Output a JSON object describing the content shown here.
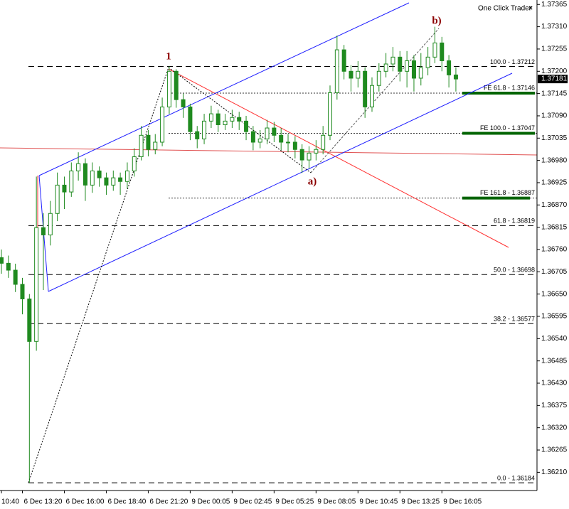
{
  "chart_data": {
    "type": "candlestick",
    "panel_title": "One Click Trader",
    "panel_close": "×",
    "color": "#1f8a1f",
    "categories": [
      "10:40",
      null,
      null,
      "6 Dec 13:20",
      null,
      null,
      null,
      null,
      null,
      "6 Dec 16:00",
      null,
      null,
      null,
      null,
      null,
      "6 Dec 18:40",
      null,
      null,
      null,
      null,
      null,
      "6 Dec 21:20",
      null,
      null,
      null,
      null,
      null,
      "9 Dec 00:05",
      null,
      null,
      null,
      null,
      null,
      "9 Dec 02:45",
      null,
      null,
      null,
      null,
      null,
      "9 Dec 05:25",
      null,
      null,
      null,
      null,
      null,
      "9 Dec 08:05",
      null,
      null,
      null,
      null,
      null,
      "9 Dec 10:45",
      null,
      null,
      null,
      null,
      null,
      "9 Dec 13:25",
      null,
      null,
      null,
      null,
      null,
      "9 Dec 16:05",
      null,
      null
    ],
    "open": [
      1.3674,
      1.36726,
      1.36709,
      1.36674,
      1.36638,
      1.36533,
      1.36814,
      1.36796,
      1.36849,
      1.36919,
      1.36902,
      1.36954,
      1.36972,
      1.36919,
      1.36954,
      1.36937,
      1.36919,
      1.36937,
      1.36928,
      1.36954,
      1.36989,
      1.37042,
      1.37007,
      1.37025,
      1.37112,
      1.372,
      1.3713,
      1.37112,
      1.37051,
      1.37033,
      1.37077,
      1.37095,
      1.37068,
      1.37077,
      1.37086,
      1.37077,
      1.37051,
      1.37025,
      1.37033,
      1.3706,
      1.37042,
      1.37025,
      1.37025,
      1.37007,
      1.36981,
      1.36998,
      1.37007,
      1.37042,
      1.37147,
      1.37253,
      1.372,
      1.37183,
      1.372,
      1.37112,
      1.37165,
      1.372,
      1.37218,
      1.37235,
      1.372,
      1.37226,
      1.37183,
      1.37209,
      1.37235,
      1.3727,
      1.37226,
      1.37191
    ],
    "high": [
      1.3676,
      1.36745,
      1.36725,
      1.3669,
      1.3665,
      1.3694,
      1.3685,
      1.3688,
      1.3695,
      1.3694,
      1.36975,
      1.37,
      1.36985,
      1.36975,
      1.36965,
      1.3695,
      1.36955,
      1.3695,
      1.36975,
      1.3701,
      1.37065,
      1.37055,
      1.37045,
      1.37135,
      1.37212,
      1.37205,
      1.37145,
      1.3712,
      1.37065,
      1.37095,
      1.37115,
      1.37105,
      1.37095,
      1.37105,
      1.371,
      1.3709,
      1.37065,
      1.37055,
      1.3708,
      1.37075,
      1.3706,
      1.37045,
      1.3704,
      1.3702,
      1.37015,
      1.3703,
      1.37065,
      1.37165,
      1.37288,
      1.37265,
      1.37215,
      1.37225,
      1.3721,
      1.37185,
      1.3722,
      1.37245,
      1.3726,
      1.3725,
      1.3725,
      1.3724,
      1.37245,
      1.3726,
      1.3731,
      1.37285,
      1.3724,
      1.3721
    ],
    "low": [
      1.367,
      1.3669,
      1.36655,
      1.366,
      1.36184,
      1.3651,
      1.3666,
      1.3677,
      1.3683,
      1.3686,
      1.3689,
      1.3693,
      1.3688,
      1.369,
      1.36915,
      1.36895,
      1.36905,
      1.36895,
      1.3691,
      1.3694,
      1.3698,
      1.3699,
      1.36995,
      1.37015,
      1.37095,
      1.3711,
      1.37085,
      1.3703,
      1.3701,
      1.3702,
      1.3706,
      1.3705,
      1.37055,
      1.3706,
      1.37055,
      1.3703,
      1.37005,
      1.3701,
      1.3702,
      1.37025,
      1.37005,
      1.37,
      1.36985,
      1.36949,
      1.3696,
      1.3698,
      1.36995,
      1.3703,
      1.3713,
      1.3718,
      1.3715,
      1.3716,
      1.37085,
      1.371,
      1.3715,
      1.37185,
      1.372,
      1.37175,
      1.3716,
      1.3715,
      1.37165,
      1.3719,
      1.3722,
      1.372,
      1.3716,
      1.3715
    ],
    "close": [
      1.36726,
      1.36709,
      1.36674,
      1.36638,
      1.36533,
      1.36814,
      1.36796,
      1.36849,
      1.36919,
      1.36902,
      1.36954,
      1.36972,
      1.36919,
      1.36954,
      1.36937,
      1.36919,
      1.36937,
      1.36928,
      1.36954,
      1.36989,
      1.37042,
      1.37007,
      1.37025,
      1.37112,
      1.372,
      1.3713,
      1.37112,
      1.37051,
      1.37033,
      1.37077,
      1.37095,
      1.37068,
      1.37077,
      1.37086,
      1.37077,
      1.37051,
      1.37025,
      1.37033,
      1.3706,
      1.37042,
      1.37025,
      1.37025,
      1.37007,
      1.36981,
      1.36998,
      1.37007,
      1.37042,
      1.37147,
      1.37253,
      1.372,
      1.37183,
      1.372,
      1.37112,
      1.37165,
      1.372,
      1.37218,
      1.37235,
      1.372,
      1.37226,
      1.37183,
      1.37209,
      1.37235,
      1.3727,
      1.37226,
      1.37191,
      1.37181
    ],
    "current_price": 1.37181,
    "ylim": [
      1.36165,
      1.37376
    ],
    "yticks": [
      1.37365,
      {
        "value": 1.3731,
        "label": "1.37310"
      },
      1.37255,
      {
        "value": 1.372,
        "label": "1.37200"
      },
      1.37145,
      {
        "value": 1.3709,
        "label": "1.37090"
      },
      1.37035,
      {
        "value": 1.3698,
        "label": "1.36980"
      },
      1.36925,
      {
        "value": 1.3687,
        "label": "1.36870"
      },
      1.36815,
      {
        "value": 1.3676,
        "label": "1.36760"
      },
      1.36705,
      {
        "value": 1.3665,
        "label": "1.36650"
      },
      1.36595,
      {
        "value": 1.3654,
        "label": "1.36540"
      },
      1.36485,
      {
        "value": 1.3643,
        "label": "1.36430"
      },
      1.36375,
      {
        "value": 1.3632,
        "label": "1.36320"
      },
      1.36265,
      {
        "value": 1.3621,
        "label": "1.36210"
      }
    ],
    "fib_retracement": [
      {
        "value": 1.37212,
        "label": "100.0 - 1.37212"
      },
      {
        "value": 1.36819,
        "label": "61.8 - 1.36819"
      },
      {
        "value": 1.36698,
        "label": "50.0 - 1.36698"
      },
      {
        "value": 1.36577,
        "label": "38.2 - 1.36577"
      },
      {
        "value": 1.36184,
        "label": "0.0 - 1.36184"
      }
    ],
    "fib_expansion": [
      {
        "value": 1.37146,
        "label": "FE 61.8 - 1.37146"
      },
      {
        "value": 1.37047,
        "label": "FE 100.0 - 1.37047"
      },
      {
        "value": 1.36887,
        "label": "FE 161.8 - 1.36887"
      }
    ],
    "wave_labels": [
      "1",
      "a)",
      "b)"
    ]
  }
}
